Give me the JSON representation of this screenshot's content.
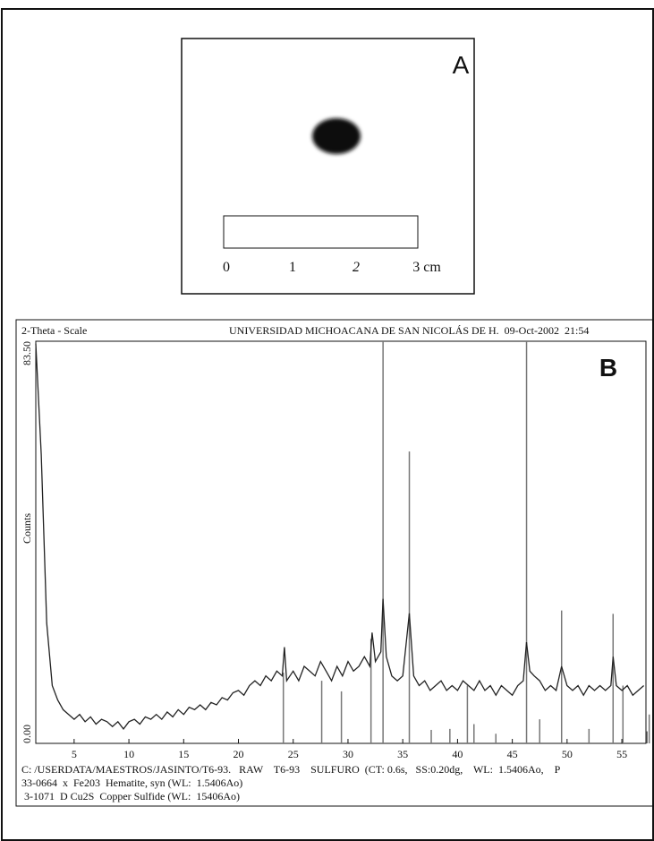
{
  "panel_a": {
    "label": "A",
    "scale_labels": [
      "0",
      "1",
      "2",
      "3 cm"
    ]
  },
  "chart_data": {
    "type": "line",
    "label": "B",
    "x_label": "2-Theta - Scale",
    "header": "UNIVERSIDAD MICHOACANA DE SAN NICOLÁS DE H.  09-Oct-2002  21:54",
    "y_label": "Counts",
    "notes": [
      "C: /USERDATA/MAESTROS/JASINTO/T6-93.   RAW    T6-93    SULFURO  (CT: 0.6s,   SS:0.20dg,    WL:  1.5406Ao,    P",
      "33-0664  x  Fe203  Hematite, syn (WL:  1.5406Ao)",
      " 3-1071  D Cu2S  Copper Sulfide (WL:  15406Ao)"
    ],
    "xlim": [
      1.5,
      57.2
    ],
    "xticks": [
      5,
      10,
      15,
      20,
      25,
      30,
      35,
      40,
      45,
      50,
      55
    ],
    "ylim": [
      0,
      83.5
    ],
    "yticks": [
      {
        "value": 0,
        "label": "0.00"
      },
      {
        "value": 83.5,
        "label": "83.50"
      }
    ],
    "series": [
      {
        "color": "#222222",
        "x": [
          1.5,
          2,
          2.5,
          3,
          3.5,
          4,
          4.5,
          5,
          5.5,
          6,
          6.5,
          7,
          7.5,
          8,
          8.5,
          9,
          9.5,
          10,
          10.5,
          11,
          11.5,
          12,
          12.5,
          13,
          13.5,
          14,
          14.5,
          15,
          15.5,
          16,
          16.5,
          17,
          17.5,
          18,
          18.5,
          19,
          19.5,
          20,
          20.5,
          21,
          21.5,
          22,
          22.5,
          23,
          23.5,
          24,
          24.2,
          24.4,
          25,
          25.5,
          26,
          26.5,
          27,
          27.5,
          28,
          28.5,
          29,
          29.5,
          30,
          30.5,
          31,
          31.5,
          32,
          32.2,
          32.5,
          33,
          33.2,
          33.5,
          34,
          34.5,
          35,
          35.6,
          36,
          36.5,
          37,
          37.5,
          38,
          38.5,
          39,
          39.5,
          40,
          40.5,
          41,
          41.5,
          42,
          42.5,
          43,
          43.5,
          44,
          44.5,
          45,
          45.5,
          46,
          46.3,
          46.6,
          47,
          47.5,
          48,
          48.5,
          49,
          49.5,
          50,
          50.5,
          51,
          51.5,
          52,
          52.5,
          53,
          53.5,
          54,
          54.2,
          54.5,
          55,
          55.5,
          56,
          56.5,
          57
        ],
        "values": [
          83,
          60,
          25,
          12,
          9,
          7,
          6,
          5,
          6,
          4.5,
          5.5,
          4,
          5,
          4.5,
          3.5,
          4.5,
          3,
          4.5,
          5,
          4,
          5.5,
          5,
          6,
          5,
          6.5,
          5.5,
          7,
          6,
          7.5,
          7,
          8,
          7,
          8.5,
          8,
          9.5,
          9,
          10.5,
          11,
          10,
          12,
          13,
          12,
          14,
          13,
          15,
          14,
          20,
          13,
          15,
          13,
          16,
          15,
          14,
          17,
          15,
          13,
          16,
          14,
          17,
          15,
          16,
          18,
          16,
          23,
          17,
          19,
          30,
          18,
          14,
          13,
          14,
          27,
          14,
          12,
          13,
          11,
          12,
          13,
          11,
          12,
          11,
          13,
          12,
          11,
          13,
          11,
          12,
          10,
          12,
          11,
          10,
          12,
          13,
          21,
          15,
          14,
          13,
          11,
          12,
          11,
          16,
          12,
          11,
          12,
          10,
          12,
          11,
          12,
          11,
          12,
          18,
          12,
          11,
          12,
          10,
          11,
          12
        ]
      }
    ],
    "reference_lines": {
      "color": "#777777",
      "x": [
        24.1,
        27.6,
        29.4,
        32.1,
        33.2,
        35.6,
        37.6,
        39.3,
        40.9,
        41.5,
        43.5,
        46.3,
        47.5,
        49.5,
        52,
        54.2,
        55.1,
        57.3,
        57.5
      ],
      "values": [
        14.7,
        13,
        10.8,
        21.7,
        83.5,
        60.6,
        2.8,
        3,
        12,
        4,
        2,
        83.5,
        5,
        27.6,
        3,
        26.9,
        12,
        2.5,
        6
      ]
    }
  }
}
